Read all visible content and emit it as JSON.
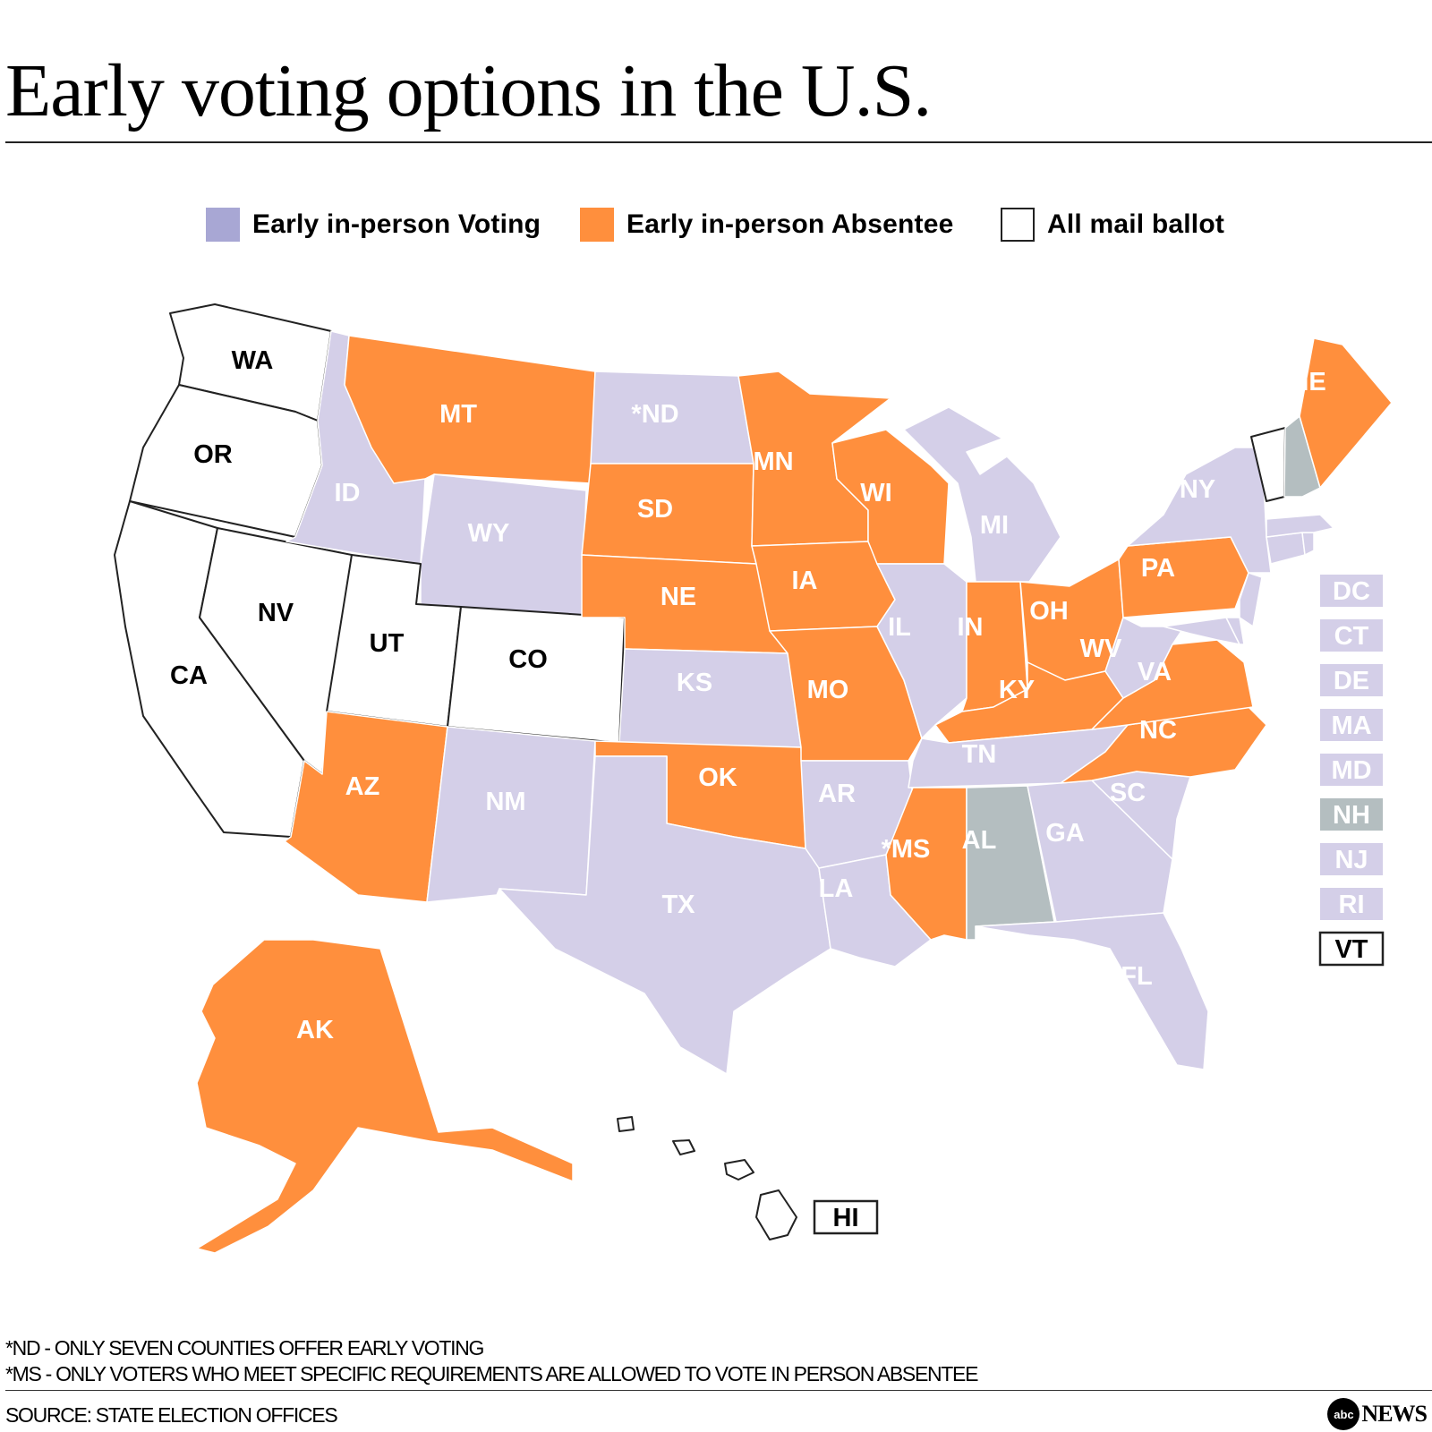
{
  "title": "Early voting options in the U.S.",
  "colors": {
    "early_in_person_voting": "#d4cfe8",
    "early_in_person_voting_swatch": "#a8a7d4",
    "early_in_person_absentee": "#ff8f3d",
    "all_mail_ballot": "#ffffff",
    "other": "#b4bec0",
    "stroke": "#ffffff",
    "mail_stroke": "#222222"
  },
  "legend": [
    {
      "key": "early_in_person_voting",
      "label": "Early in-person Voting"
    },
    {
      "key": "early_in_person_absentee",
      "label": "Early in-person Absentee"
    },
    {
      "key": "all_mail_ballot",
      "label": "All mail ballot"
    }
  ],
  "states": {
    "WA": {
      "label": "WA",
      "category": "all_mail_ballot"
    },
    "OR": {
      "label": "OR",
      "category": "all_mail_ballot"
    },
    "CA": {
      "label": "CA",
      "category": "all_mail_ballot"
    },
    "NV": {
      "label": "NV",
      "category": "all_mail_ballot"
    },
    "UT": {
      "label": "UT",
      "category": "all_mail_ballot"
    },
    "CO": {
      "label": "CO",
      "category": "all_mail_ballot"
    },
    "HI": {
      "label": "HI",
      "category": "all_mail_ballot"
    },
    "VT": {
      "label": "VT",
      "category": "all_mail_ballot"
    },
    "ID": {
      "label": "ID",
      "category": "early_in_person_voting"
    },
    "WY": {
      "label": "WY",
      "category": "early_in_person_voting"
    },
    "ND": {
      "label": "*ND",
      "category": "early_in_person_voting"
    },
    "NM": {
      "label": "NM",
      "category": "early_in_person_voting"
    },
    "TX": {
      "label": "TX",
      "category": "early_in_person_voting"
    },
    "KS": {
      "label": "KS",
      "category": "early_in_person_voting"
    },
    "AR": {
      "label": "AR",
      "category": "early_in_person_voting"
    },
    "LA": {
      "label": "LA",
      "category": "early_in_person_voting"
    },
    "IL": {
      "label": "IL",
      "category": "early_in_person_voting"
    },
    "MI": {
      "label": "MI",
      "category": "early_in_person_voting"
    },
    "TN": {
      "label": "TN",
      "category": "early_in_person_voting"
    },
    "GA": {
      "label": "GA",
      "category": "early_in_person_voting"
    },
    "FL": {
      "label": "FL",
      "category": "early_in_person_voting"
    },
    "SC": {
      "label": "SC",
      "category": "early_in_person_voting"
    },
    "WV": {
      "label": "WV",
      "category": "early_in_person_voting"
    },
    "NY": {
      "label": "NY",
      "category": "early_in_person_voting"
    },
    "MT": {
      "label": "MT",
      "category": "early_in_person_absentee"
    },
    "SD": {
      "label": "SD",
      "category": "early_in_person_absentee"
    },
    "NE": {
      "label": "NE",
      "category": "early_in_person_absentee"
    },
    "MN": {
      "label": "MN",
      "category": "early_in_person_absentee"
    },
    "IA": {
      "label": "IA",
      "category": "early_in_person_absentee"
    },
    "MO": {
      "label": "MO",
      "category": "early_in_person_absentee"
    },
    "OK": {
      "label": "OK",
      "category": "early_in_person_absentee"
    },
    "AZ": {
      "label": "AZ",
      "category": "early_in_person_absentee"
    },
    "WI": {
      "label": "WI",
      "category": "early_in_person_absentee"
    },
    "IN": {
      "label": "IN",
      "category": "early_in_person_absentee"
    },
    "OH": {
      "label": "OH",
      "category": "early_in_person_absentee"
    },
    "KY": {
      "label": "KY",
      "category": "early_in_person_absentee"
    },
    "PA": {
      "label": "PA",
      "category": "early_in_person_absentee"
    },
    "VA": {
      "label": "VA",
      "category": "early_in_person_absentee"
    },
    "NC": {
      "label": "NC",
      "category": "early_in_person_absentee"
    },
    "MS": {
      "label": "*MS",
      "category": "early_in_person_absentee"
    },
    "ME": {
      "label": "ME",
      "category": "early_in_person_absentee"
    },
    "AK": {
      "label": "AK",
      "category": "early_in_person_absentee"
    },
    "AL": {
      "label": "AL",
      "category": "other"
    },
    "NH": {
      "label": "NH",
      "category": "other"
    },
    "DC": {
      "label": "DC",
      "category": "early_in_person_voting"
    },
    "CT": {
      "label": "CT",
      "category": "early_in_person_voting"
    },
    "DE": {
      "label": "DE",
      "category": "early_in_person_voting"
    },
    "MA": {
      "label": "MA",
      "category": "early_in_person_voting"
    },
    "MD": {
      "label": "MD",
      "category": "early_in_person_voting"
    },
    "NJ": {
      "label": "NJ",
      "category": "early_in_person_voting"
    },
    "RI": {
      "label": "RI",
      "category": "early_in_person_voting"
    }
  },
  "sidebar_boxes": [
    "DC",
    "CT",
    "DE",
    "MA",
    "MD",
    "NH",
    "NJ",
    "RI",
    "VT"
  ],
  "footnotes": [
    "*ND - ONLY SEVEN COUNTIES OFFER EARLY VOTING",
    "*MS - ONLY VOTERS WHO MEET SPECIFIC REQUIREMENTS ARE ALLOWED TO VOTE IN PERSON ABSENTEE"
  ],
  "source": "SOURCE: STATE ELECTION OFFICES",
  "logo": {
    "mark": "abc",
    "text": "NEWS"
  }
}
